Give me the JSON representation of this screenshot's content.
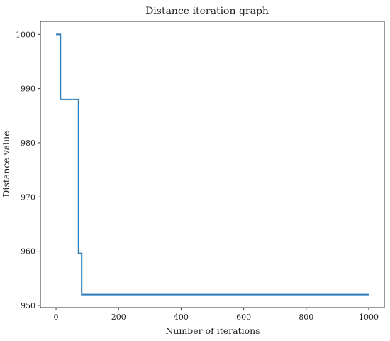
{
  "chart_data": {
    "type": "line",
    "title": "Distance iteration graph",
    "xlabel": "Number of iterations",
    "ylabel": "Distance value",
    "xlim": [
      -50,
      1050
    ],
    "ylim": [
      949.6,
      1002.4
    ],
    "xticks": [
      0,
      200,
      400,
      600,
      800,
      1000
    ],
    "yticks": [
      950,
      960,
      970,
      980,
      990,
      1000
    ],
    "xtick_labels": [
      "0",
      "200",
      "400",
      "600",
      "800",
      "1000"
    ],
    "ytick_labels": [
      "950",
      "960",
      "970",
      "980",
      "990",
      "1000"
    ],
    "grid": false,
    "series": [
      {
        "color": "#2b7bba",
        "step": "post",
        "x": [
          0,
          14,
          72,
          82,
          1000
        ],
        "y": [
          1000,
          988,
          959.6,
          952,
          952
        ]
      }
    ]
  }
}
